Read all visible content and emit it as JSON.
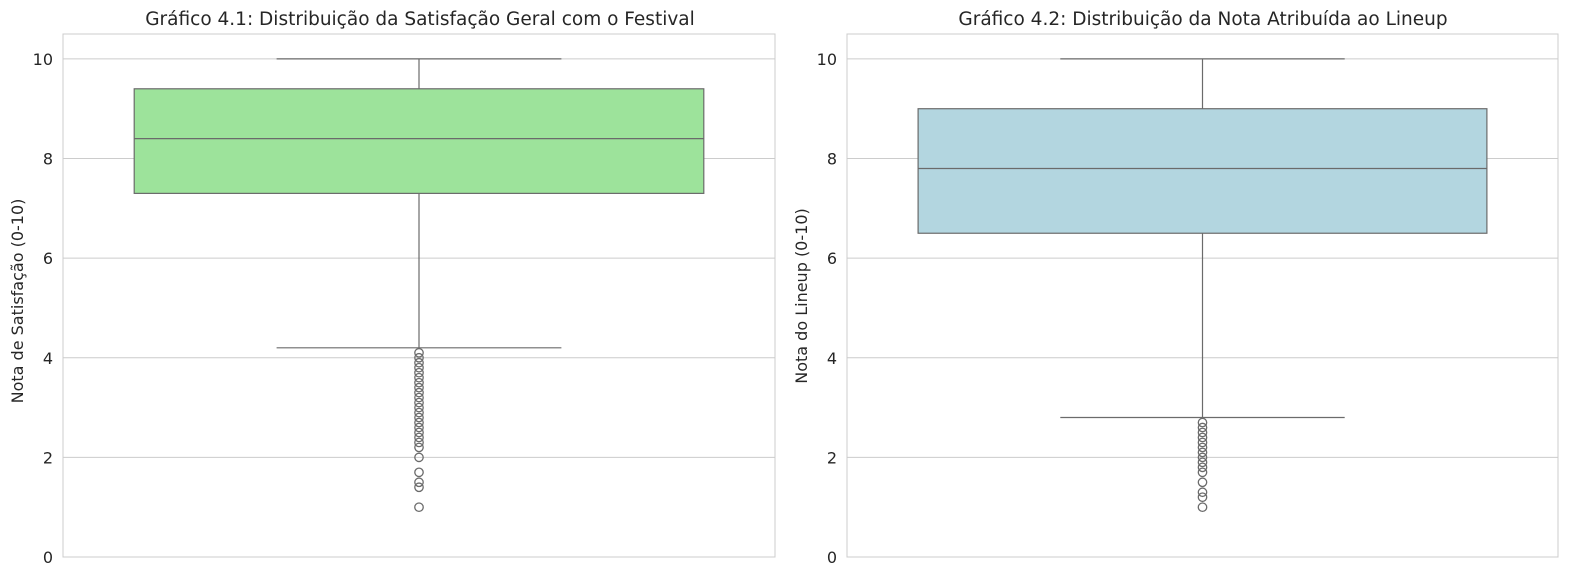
{
  "chart_data": [
    {
      "type": "box",
      "title": "Gráfico 4.1: Distribuição da Satisfação Geral com o Festival",
      "ylabel": "Nota de Satisfação (0-10)",
      "xlabel": "",
      "ylim": [
        0,
        10.5
      ],
      "yticks": [
        "0",
        "2",
        "4",
        "6",
        "8",
        "10"
      ],
      "grid": true,
      "color": "#9de39b",
      "box": {
        "whisker_low": 4.2,
        "q1": 7.3,
        "median": 8.4,
        "q3": 9.4,
        "whisker_high": 10.0
      },
      "outliers": [
        4.1,
        4.0,
        3.9,
        3.8,
        3.7,
        3.6,
        3.5,
        3.4,
        3.3,
        3.2,
        3.1,
        3.0,
        2.9,
        2.8,
        2.7,
        2.6,
        2.5,
        2.4,
        2.3,
        2.2,
        2.0,
        1.7,
        1.5,
        1.4,
        1.0
      ]
    },
    {
      "type": "box",
      "title": "Gráfico 4.2: Distribuição da Nota Atribuída ao Lineup",
      "ylabel": "Nota do Lineup (0-10)",
      "xlabel": "",
      "ylim": [
        0,
        10.5
      ],
      "yticks": [
        "0",
        "2",
        "4",
        "6",
        "8",
        "10"
      ],
      "grid": true,
      "color": "#b3d6e0",
      "box": {
        "whisker_low": 2.8,
        "q1": 6.5,
        "median": 7.8,
        "q3": 9.0,
        "whisker_high": 10.0
      },
      "outliers": [
        2.7,
        2.6,
        2.5,
        2.4,
        2.3,
        2.2,
        2.1,
        2.0,
        1.9,
        1.8,
        1.7,
        1.5,
        1.3,
        1.2,
        1.0
      ]
    }
  ]
}
